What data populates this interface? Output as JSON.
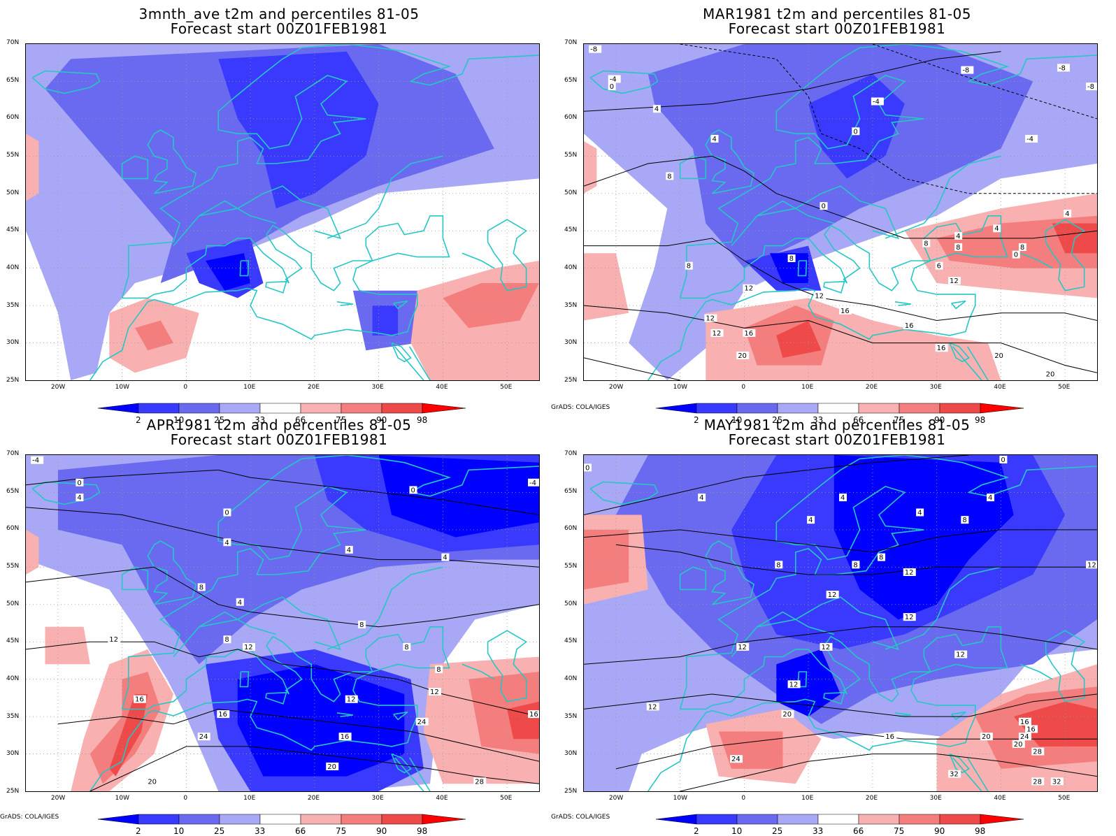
{
  "colors": {
    "p2": "#0000ff",
    "p10": "#3a3aff",
    "p25": "#6a6af0",
    "p33": "#a8a8f6",
    "p66": "#f8b0b0",
    "p75": "#f47d7d",
    "p90": "#ee4a4a",
    "p98": "#ff0000",
    "coast": "#26c6c6",
    "contour": "#000000",
    "grid": "#9a9a9a"
  },
  "panels": [
    {
      "title1": "3mnth_ave t2m and percentiles 81-05",
      "title2": "Forecast start 00Z01FEB1981",
      "credit": ""
    },
    {
      "title1": "MAR1981 t2m and percentiles 81-05",
      "title2": "Forecast start 00Z01FEB1981",
      "credit": "GrADS: COLA/IGES"
    },
    {
      "title1": "APR1981 t2m and percentiles 81-05",
      "title2": "Forecast start 00Z01FEB1981",
      "credit": "GrADS: COLA/IGES"
    },
    {
      "title1": "MAY1981 t2m and percentiles 81-05",
      "title2": "Forecast start 00Z01FEB1981",
      "credit": "GrADS: COLA/IGES"
    }
  ],
  "lat_labels": [
    "70N",
    "65N",
    "60N",
    "55N",
    "50N",
    "45N",
    "40N",
    "35N",
    "30N",
    "25N"
  ],
  "lon_labels": [
    "20W",
    "10W",
    "0",
    "10E",
    "20E",
    "30E",
    "40E",
    "50E"
  ],
  "colorbar_labels": [
    "2",
    "10",
    "25",
    "33",
    "66",
    "75",
    "90",
    "98"
  ],
  "contour_labels": {
    "mar": [
      "-8",
      "-8",
      "-8",
      "-8",
      "-4",
      "-4",
      "-4",
      "0",
      "0",
      "0",
      "4",
      "4",
      "4",
      "4",
      "4",
      "8",
      "8",
      "8",
      "8",
      "8",
      "8",
      "0",
      "6",
      "12",
      "12",
      "12",
      "12",
      "12",
      "16",
      "16",
      "16",
      "16",
      "20",
      "20",
      "20"
    ],
    "apr": [
      "-4",
      "-4",
      "0",
      "0",
      "0",
      "4",
      "4",
      "4",
      "4",
      "4",
      "8",
      "8",
      "8",
      "8",
      "8",
      "12",
      "12",
      "12",
      "12",
      "16",
      "16",
      "16",
      "16",
      "20",
      "20",
      "24",
      "24",
      "28"
    ],
    "may": [
      "0",
      "0",
      "4",
      "4",
      "4",
      "4",
      "4",
      "8",
      "8",
      "8",
      "8",
      "12",
      "12",
      "12",
      "12",
      "12",
      "12",
      "12",
      "12",
      "12",
      "16",
      "16",
      "16",
      "20",
      "20",
      "20",
      "24",
      "24",
      "28",
      "28",
      "32",
      "32"
    ]
  }
}
